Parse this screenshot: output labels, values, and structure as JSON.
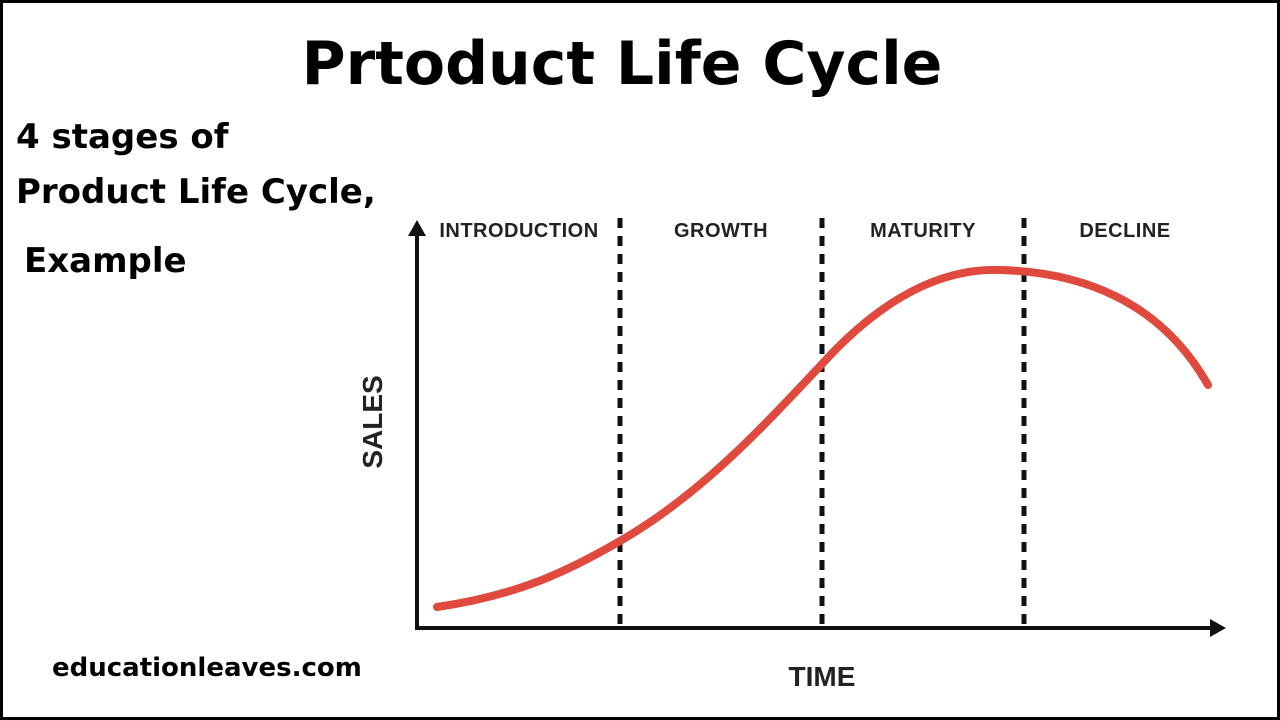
{
  "header": {
    "title": "Prtoduct Life Cycle"
  },
  "subtitle": {
    "lines": [
      "4 stages of",
      "Product Life Cycle,",
      "Example"
    ]
  },
  "diagram": {
    "stages": [
      "INTRODUCTION",
      "GROWTH",
      "MATURITY",
      "DECLINE"
    ],
    "y_axis_label": "SALES",
    "x_axis_label": "TIME"
  },
  "footer": {
    "website": "educationleaves.com"
  }
}
